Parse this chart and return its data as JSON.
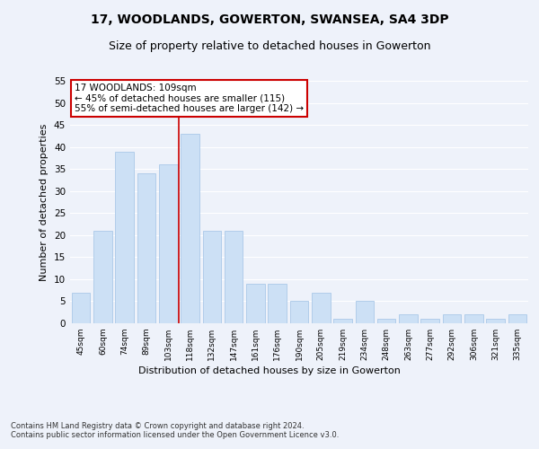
{
  "title1": "17, WOODLANDS, GOWERTON, SWANSEA, SA4 3DP",
  "title2": "Size of property relative to detached houses in Gowerton",
  "xlabel": "Distribution of detached houses by size in Gowerton",
  "ylabel": "Number of detached properties",
  "categories": [
    "45sqm",
    "60sqm",
    "74sqm",
    "89sqm",
    "103sqm",
    "118sqm",
    "132sqm",
    "147sqm",
    "161sqm",
    "176sqm",
    "190sqm",
    "205sqm",
    "219sqm",
    "234sqm",
    "248sqm",
    "263sqm",
    "277sqm",
    "292sqm",
    "306sqm",
    "321sqm",
    "335sqm"
  ],
  "values": [
    7,
    21,
    39,
    34,
    36,
    43,
    21,
    21,
    9,
    9,
    5,
    7,
    1,
    5,
    1,
    2,
    1,
    2,
    2,
    1,
    2
  ],
  "bar_color": "#cce0f5",
  "bar_edge_color": "#aac8e8",
  "vline_x": 4.5,
  "vline_color": "#cc0000",
  "annotation_text": "17 WOODLANDS: 109sqm\n← 45% of detached houses are smaller (115)\n55% of semi-detached houses are larger (142) →",
  "annotation_box_color": "#ffffff",
  "annotation_box_edge": "#cc0000",
  "footnote": "Contains HM Land Registry data © Crown copyright and database right 2024.\nContains public sector information licensed under the Open Government Licence v3.0.",
  "ylim": [
    0,
    55
  ],
  "yticks": [
    0,
    5,
    10,
    15,
    20,
    25,
    30,
    35,
    40,
    45,
    50,
    55
  ],
  "bg_color": "#eef2fa",
  "grid_color": "#ffffff",
  "title1_fontsize": 10,
  "title2_fontsize": 9,
  "xlabel_fontsize": 8,
  "ylabel_fontsize": 8,
  "bar_width": 0.85
}
